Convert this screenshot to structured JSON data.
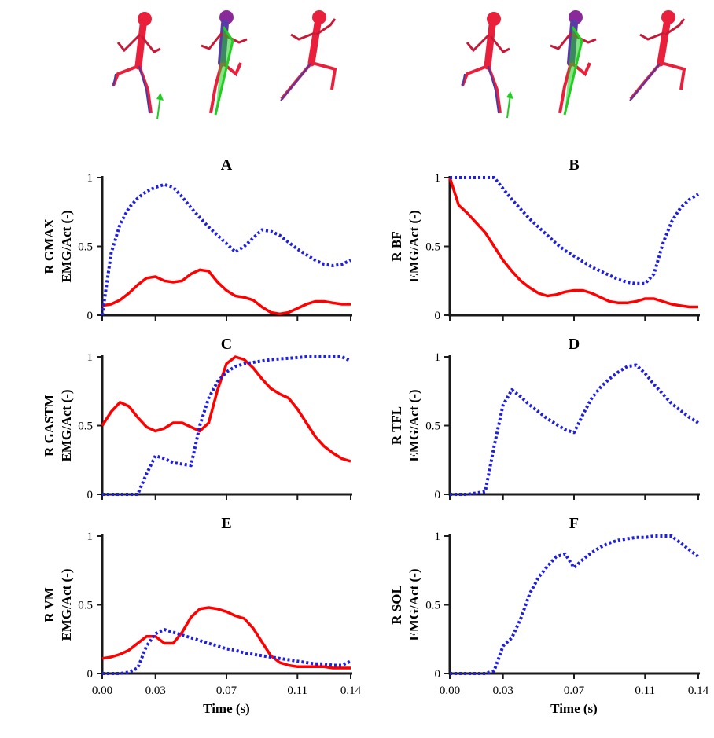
{
  "colors": {
    "measured_emg": "#ff0000",
    "simulated_activation": "#1f1fe0",
    "axis": "#1a1a1a",
    "skeleton_primary": "#e8203c",
    "skeleton_secondary": "#4a3aa8",
    "force_vector": "#22cc22"
  },
  "skeleton_figures": {
    "left_group": [
      "running-skeleton-pose-1",
      "running-skeleton-pose-2",
      "running-skeleton-pose-3"
    ],
    "right_group": [
      "running-skeleton-pose-1",
      "running-skeleton-pose-2",
      "running-skeleton-pose-3"
    ]
  },
  "chart_data": [
    {
      "type": "line",
      "title": "A",
      "ylabel": [
        "R GMAX",
        "EMG/Act (-)"
      ],
      "xlabel": "",
      "xlim": [
        0,
        0.14
      ],
      "ylim": [
        0,
        1
      ],
      "xticks": [
        "0.00",
        "0.03",
        "0.07",
        "0.11",
        "0.14"
      ],
      "yticks": [
        "0",
        "0.5",
        "1"
      ],
      "series": [
        {
          "style": "solid",
          "color": "#ff0000",
          "x": [
            0,
            0.005,
            0.01,
            0.015,
            0.02,
            0.025,
            0.03,
            0.035,
            0.04,
            0.045,
            0.05,
            0.055,
            0.06,
            0.065,
            0.07,
            0.075,
            0.08,
            0.085,
            0.09,
            0.095,
            0.1,
            0.105,
            0.11,
            0.115,
            0.12,
            0.125,
            0.13,
            0.135,
            0.14
          ],
          "y": [
            0.07,
            0.08,
            0.11,
            0.16,
            0.22,
            0.27,
            0.28,
            0.25,
            0.24,
            0.25,
            0.3,
            0.33,
            0.32,
            0.24,
            0.18,
            0.14,
            0.13,
            0.11,
            0.06,
            0.02,
            0.01,
            0.02,
            0.05,
            0.08,
            0.1,
            0.1,
            0.09,
            0.08,
            0.08
          ]
        },
        {
          "style": "dotted",
          "color": "#1f1fe0",
          "x": [
            0,
            0.005,
            0.01,
            0.015,
            0.02,
            0.025,
            0.03,
            0.035,
            0.04,
            0.045,
            0.05,
            0.055,
            0.06,
            0.065,
            0.07,
            0.075,
            0.08,
            0.085,
            0.09,
            0.095,
            0.1,
            0.105,
            0.11,
            0.115,
            0.12,
            0.125,
            0.13,
            0.135,
            0.14
          ],
          "y": [
            0,
            0.45,
            0.66,
            0.78,
            0.85,
            0.9,
            0.93,
            0.95,
            0.93,
            0.86,
            0.78,
            0.71,
            0.64,
            0.58,
            0.52,
            0.46,
            0.5,
            0.56,
            0.62,
            0.61,
            0.58,
            0.53,
            0.48,
            0.44,
            0.4,
            0.37,
            0.36,
            0.37,
            0.4
          ]
        }
      ]
    },
    {
      "type": "line",
      "title": "B",
      "ylabel": [
        "R BF",
        "EMG/Act (-)"
      ],
      "xlabel": "",
      "xlim": [
        0,
        0.14
      ],
      "ylim": [
        0,
        1
      ],
      "xticks": [
        "0.00",
        "0.03",
        "0.07",
        "0.11",
        "0.14"
      ],
      "yticks": [
        "0",
        "0.5",
        "1"
      ],
      "series": [
        {
          "style": "solid",
          "color": "#ff0000",
          "x": [
            0,
            0.005,
            0.01,
            0.015,
            0.02,
            0.025,
            0.03,
            0.035,
            0.04,
            0.045,
            0.05,
            0.055,
            0.06,
            0.065,
            0.07,
            0.075,
            0.08,
            0.085,
            0.09,
            0.095,
            0.1,
            0.105,
            0.11,
            0.115,
            0.12,
            0.125,
            0.13,
            0.135,
            0.14
          ],
          "y": [
            1.0,
            0.8,
            0.74,
            0.67,
            0.6,
            0.5,
            0.4,
            0.32,
            0.25,
            0.2,
            0.16,
            0.14,
            0.15,
            0.17,
            0.18,
            0.18,
            0.16,
            0.13,
            0.1,
            0.09,
            0.09,
            0.1,
            0.12,
            0.12,
            0.1,
            0.08,
            0.07,
            0.06,
            0.06
          ]
        },
        {
          "style": "dotted",
          "color": "#1f1fe0",
          "x": [
            0,
            0.005,
            0.01,
            0.015,
            0.02,
            0.025,
            0.03,
            0.035,
            0.04,
            0.045,
            0.05,
            0.055,
            0.06,
            0.065,
            0.07,
            0.075,
            0.08,
            0.085,
            0.09,
            0.095,
            0.1,
            0.105,
            0.11,
            0.115,
            0.12,
            0.125,
            0.13,
            0.135,
            0.14
          ],
          "y": [
            1.0,
            1.0,
            1.0,
            1.0,
            1.0,
            1.0,
            0.92,
            0.84,
            0.77,
            0.7,
            0.64,
            0.58,
            0.52,
            0.47,
            0.43,
            0.39,
            0.35,
            0.32,
            0.29,
            0.26,
            0.24,
            0.23,
            0.23,
            0.3,
            0.52,
            0.68,
            0.78,
            0.84,
            0.88
          ]
        }
      ]
    },
    {
      "type": "line",
      "title": "C",
      "ylabel": [
        "R GASTM",
        "EMG/Act (-)"
      ],
      "xlabel": "",
      "xlim": [
        0,
        0.14
      ],
      "ylim": [
        0,
        1
      ],
      "xticks": [
        "0.00",
        "0.03",
        "0.07",
        "0.11",
        "0.14"
      ],
      "yticks": [
        "0",
        "0.5",
        "1"
      ],
      "series": [
        {
          "style": "solid",
          "color": "#ff0000",
          "x": [
            0,
            0.005,
            0.01,
            0.015,
            0.02,
            0.025,
            0.03,
            0.035,
            0.04,
            0.045,
            0.05,
            0.055,
            0.06,
            0.065,
            0.07,
            0.075,
            0.08,
            0.085,
            0.09,
            0.095,
            0.1,
            0.105,
            0.11,
            0.115,
            0.12,
            0.125,
            0.13,
            0.135,
            0.14
          ],
          "y": [
            0.5,
            0.6,
            0.67,
            0.64,
            0.56,
            0.49,
            0.46,
            0.48,
            0.52,
            0.52,
            0.49,
            0.46,
            0.52,
            0.76,
            0.95,
            1.0,
            0.98,
            0.92,
            0.84,
            0.77,
            0.73,
            0.7,
            0.62,
            0.52,
            0.42,
            0.35,
            0.3,
            0.26,
            0.24
          ]
        },
        {
          "style": "dotted",
          "color": "#1f1fe0",
          "x": [
            0,
            0.005,
            0.01,
            0.015,
            0.02,
            0.025,
            0.03,
            0.035,
            0.04,
            0.045,
            0.05,
            0.055,
            0.06,
            0.065,
            0.07,
            0.075,
            0.08,
            0.085,
            0.09,
            0.095,
            0.1,
            0.105,
            0.11,
            0.115,
            0.12,
            0.125,
            0.13,
            0.135,
            0.14
          ],
          "y": [
            0,
            0,
            0,
            0,
            0,
            0.15,
            0.28,
            0.26,
            0.23,
            0.22,
            0.21,
            0.5,
            0.7,
            0.82,
            0.89,
            0.93,
            0.95,
            0.96,
            0.97,
            0.98,
            0.985,
            0.99,
            0.995,
            1.0,
            1.0,
            1.0,
            1.0,
            1.0,
            0.97
          ]
        }
      ]
    },
    {
      "type": "line",
      "title": "D",
      "ylabel": [
        "R TFL",
        "EMG/Act (-)"
      ],
      "xlabel": "",
      "xlim": [
        0,
        0.14
      ],
      "ylim": [
        0,
        1
      ],
      "xticks": [
        "0.00",
        "0.03",
        "0.07",
        "0.11",
        "0.14"
      ],
      "yticks": [
        "0",
        "0.5",
        "1"
      ],
      "series": [
        {
          "style": "dotted",
          "color": "#1f1fe0",
          "x": [
            0,
            0.005,
            0.01,
            0.015,
            0.02,
            0.025,
            0.03,
            0.035,
            0.04,
            0.045,
            0.05,
            0.055,
            0.06,
            0.065,
            0.07,
            0.075,
            0.08,
            0.085,
            0.09,
            0.095,
            0.1,
            0.105,
            0.11,
            0.115,
            0.12,
            0.125,
            0.13,
            0.135,
            0.14
          ],
          "y": [
            0,
            0,
            0,
            0.01,
            0.02,
            0.35,
            0.65,
            0.76,
            0.71,
            0.65,
            0.6,
            0.55,
            0.51,
            0.47,
            0.45,
            0.58,
            0.7,
            0.78,
            0.84,
            0.89,
            0.93,
            0.94,
            0.88,
            0.8,
            0.73,
            0.66,
            0.61,
            0.56,
            0.52
          ]
        }
      ]
    },
    {
      "type": "line",
      "title": "E",
      "ylabel": [
        "R VM",
        "EMG/Act (-)"
      ],
      "xlabel": "Time (s)",
      "xlim": [
        0,
        0.14
      ],
      "ylim": [
        0,
        1
      ],
      "xticks": [
        "0.00",
        "0.03",
        "0.07",
        "0.11",
        "0.14"
      ],
      "yticks": [
        "0",
        "0.5",
        "1"
      ],
      "series": [
        {
          "style": "solid",
          "color": "#ff0000",
          "x": [
            0,
            0.005,
            0.01,
            0.015,
            0.02,
            0.025,
            0.03,
            0.035,
            0.04,
            0.045,
            0.05,
            0.055,
            0.06,
            0.065,
            0.07,
            0.075,
            0.08,
            0.085,
            0.09,
            0.095,
            0.1,
            0.105,
            0.11,
            0.115,
            0.12,
            0.125,
            0.13,
            0.135,
            0.14
          ],
          "y": [
            0.11,
            0.12,
            0.14,
            0.17,
            0.22,
            0.27,
            0.27,
            0.22,
            0.22,
            0.3,
            0.41,
            0.47,
            0.48,
            0.47,
            0.45,
            0.42,
            0.4,
            0.33,
            0.23,
            0.13,
            0.08,
            0.06,
            0.05,
            0.05,
            0.05,
            0.05,
            0.04,
            0.04,
            0.04
          ]
        },
        {
          "style": "dotted",
          "color": "#1f1fe0",
          "x": [
            0,
            0.005,
            0.01,
            0.015,
            0.02,
            0.025,
            0.03,
            0.035,
            0.04,
            0.045,
            0.05,
            0.055,
            0.06,
            0.065,
            0.07,
            0.075,
            0.08,
            0.085,
            0.09,
            0.095,
            0.1,
            0.105,
            0.11,
            0.115,
            0.12,
            0.125,
            0.13,
            0.135,
            0.14
          ],
          "y": [
            0,
            0,
            0,
            0.01,
            0.04,
            0.2,
            0.29,
            0.32,
            0.3,
            0.28,
            0.26,
            0.24,
            0.22,
            0.2,
            0.18,
            0.17,
            0.15,
            0.14,
            0.13,
            0.12,
            0.11,
            0.1,
            0.09,
            0.08,
            0.07,
            0.07,
            0.06,
            0.06,
            0.09
          ]
        }
      ]
    },
    {
      "type": "line",
      "title": "F",
      "ylabel": [
        "R SOL",
        "EMG/Act (-)"
      ],
      "xlabel": "Time (s)",
      "xlim": [
        0,
        0.14
      ],
      "ylim": [
        0,
        1
      ],
      "xticks": [
        "0.00",
        "0.03",
        "0.07",
        "0.11",
        "0.14"
      ],
      "yticks": [
        "0",
        "0.5",
        "1"
      ],
      "series": [
        {
          "style": "dotted",
          "color": "#1f1fe0",
          "x": [
            0,
            0.005,
            0.01,
            0.015,
            0.02,
            0.025,
            0.03,
            0.035,
            0.04,
            0.045,
            0.05,
            0.055,
            0.06,
            0.065,
            0.07,
            0.075,
            0.08,
            0.085,
            0.09,
            0.095,
            0.1,
            0.105,
            0.11,
            0.115,
            0.12,
            0.125,
            0.13,
            0.135,
            0.14
          ],
          "y": [
            0,
            0,
            0,
            0,
            0,
            0.02,
            0.2,
            0.26,
            0.4,
            0.58,
            0.7,
            0.78,
            0.85,
            0.87,
            0.77,
            0.83,
            0.88,
            0.92,
            0.95,
            0.97,
            0.98,
            0.99,
            0.99,
            1.0,
            1.0,
            1.0,
            0.95,
            0.9,
            0.85
          ]
        }
      ]
    }
  ]
}
